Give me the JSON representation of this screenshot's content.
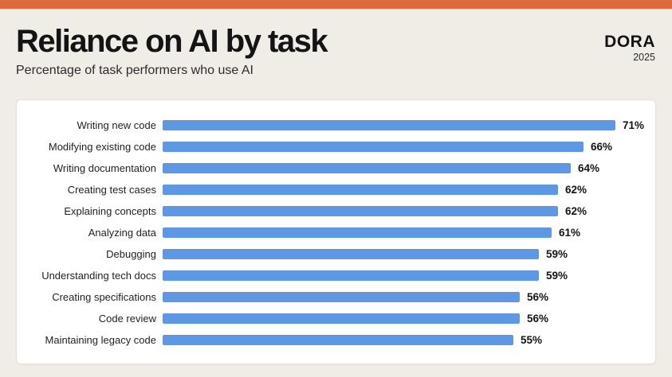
{
  "header": {
    "title": "Reliance on AI by task",
    "subtitle": "Percentage of task performers who use AI",
    "logo": {
      "name": "DORA",
      "year": "2025"
    }
  },
  "colors": {
    "accent_orange": "#DD6A3C",
    "bar_blue": "#5F98E2",
    "background_beige": "#F0EDE7",
    "card_white": "#FFFFFF",
    "text_black": "#1F1F1F"
  },
  "chart_data": {
    "type": "bar",
    "orientation": "horizontal",
    "title": "Reliance on AI by task",
    "subtitle": "Percentage of task performers who use AI",
    "categories": [
      "Writing new code",
      "Modifying existing code",
      "Writing documentation",
      "Creating test cases",
      "Explaining concepts",
      "Analyzing data",
      "Debugging",
      "Understanding tech docs",
      "Creating specifications",
      "Code review",
      "Maintaining legacy code"
    ],
    "values": [
      71,
      66,
      64,
      62,
      62,
      61,
      59,
      59,
      56,
      56,
      55
    ],
    "value_suffix": "%",
    "xlim": [
      0,
      100
    ],
    "grid": false,
    "legend": false,
    "bar_color": "#5F98E2"
  }
}
